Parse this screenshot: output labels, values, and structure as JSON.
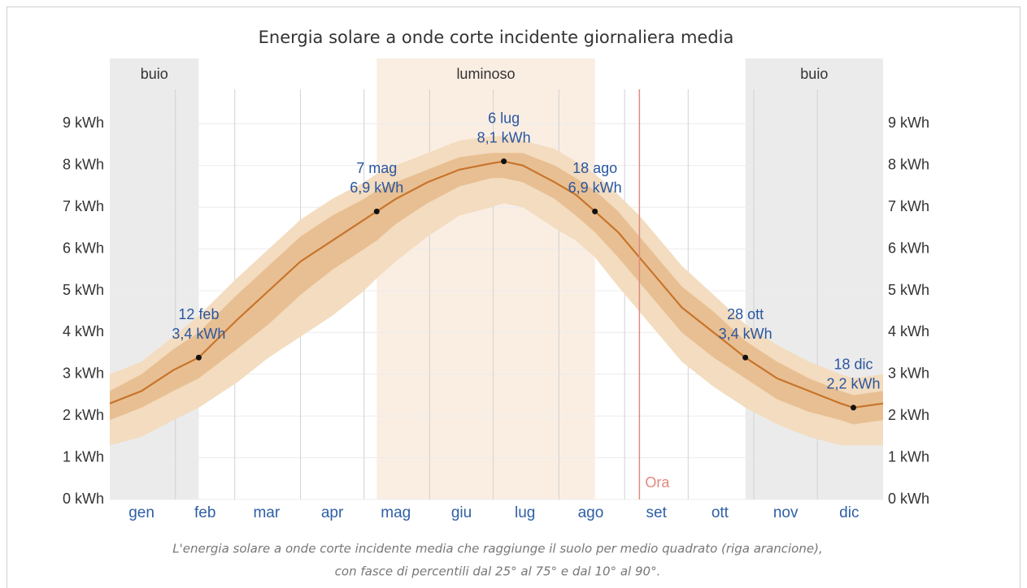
{
  "chart_data": {
    "type": "line",
    "title": "Energia solare a onde corte incidente giornaliera media",
    "caption": [
      "L'energia solare a onde corte incidente media che raggiunge il suolo per medio quadrato (riga arancione),",
      "con fasce di percentili dal 25° al 75° e dal 10° al 90°."
    ],
    "xlim": [
      0,
      365
    ],
    "xticks": [
      {
        "value": 15,
        "label": "gen"
      },
      {
        "value": 45,
        "label": "feb"
      },
      {
        "value": 74,
        "label": "mar"
      },
      {
        "value": 105,
        "label": "apr"
      },
      {
        "value": 135,
        "label": "mag"
      },
      {
        "value": 166,
        "label": "giu"
      },
      {
        "value": 196,
        "label": "lug"
      },
      {
        "value": 227,
        "label": "ago"
      },
      {
        "value": 258,
        "label": "set"
      },
      {
        "value": 288,
        "label": "ott"
      },
      {
        "value": 319,
        "label": "nov"
      },
      {
        "value": 349,
        "label": "dic"
      }
    ],
    "xgrid": [
      31,
      59,
      90,
      120,
      151,
      181,
      212,
      243,
      273,
      304,
      334
    ],
    "ylim": [
      0,
      9
    ],
    "yticks": [
      {
        "value": 0,
        "label": "0 kWh"
      },
      {
        "value": 1,
        "label": "1 kWh"
      },
      {
        "value": 2,
        "label": "2 kWh"
      },
      {
        "value": 3,
        "label": "3 kWh"
      },
      {
        "value": 4,
        "label": "4 kWh"
      },
      {
        "value": 5,
        "label": "5 kWh"
      },
      {
        "value": 6,
        "label": "6 kWh"
      },
      {
        "value": 7,
        "label": "7 kWh"
      },
      {
        "value": 8,
        "label": "8 kWh"
      },
      {
        "value": 9,
        "label": "9 kWh"
      }
    ],
    "grid": true,
    "regions": [
      {
        "from": 0,
        "to": 42,
        "label": "buio",
        "color": "#ebebeb"
      },
      {
        "from": 126,
        "to": 229,
        "label": "luminoso",
        "color": "#faeee3"
      },
      {
        "from": 300,
        "to": 365,
        "label": "buio",
        "color": "#ebebeb"
      }
    ],
    "x": [
      0,
      15,
      30,
      42,
      60,
      75,
      90,
      105,
      120,
      126,
      135,
      150,
      165,
      180,
      186,
      195,
      210,
      220,
      229,
      240,
      250,
      260,
      270,
      285,
      300,
      315,
      330,
      345,
      351,
      365
    ],
    "bands": [
      {
        "color": "#f3dcbf",
        "lower": [
          1.3,
          1.5,
          1.9,
          2.2,
          2.8,
          3.4,
          3.9,
          4.4,
          5.0,
          5.3,
          5.7,
          6.3,
          6.8,
          7.0,
          7.1,
          7.0,
          6.5,
          6.2,
          5.8,
          5.1,
          4.5,
          3.9,
          3.3,
          2.7,
          2.2,
          1.8,
          1.5,
          1.3,
          1.3,
          1.3
        ],
        "upper": [
          3.0,
          3.3,
          3.9,
          4.4,
          5.3,
          6.0,
          6.7,
          7.2,
          7.6,
          7.8,
          8.0,
          8.3,
          8.6,
          8.7,
          8.7,
          8.6,
          8.4,
          8.1,
          7.8,
          7.3,
          6.8,
          6.2,
          5.6,
          4.9,
          4.2,
          3.7,
          3.3,
          3.0,
          2.9,
          3.0
        ]
      },
      {
        "color": "#e8bf92",
        "lower": [
          1.9,
          2.2,
          2.6,
          2.9,
          3.6,
          4.2,
          4.9,
          5.5,
          6.0,
          6.2,
          6.6,
          7.1,
          7.5,
          7.7,
          7.7,
          7.6,
          7.2,
          6.8,
          6.4,
          5.8,
          5.2,
          4.6,
          4.0,
          3.4,
          2.9,
          2.4,
          2.1,
          1.9,
          1.8,
          1.9
        ],
        "upper": [
          2.6,
          3.0,
          3.6,
          4.0,
          4.9,
          5.6,
          6.3,
          6.8,
          7.2,
          7.4,
          7.6,
          7.9,
          8.2,
          8.3,
          8.3,
          8.3,
          8.0,
          7.7,
          7.4,
          6.9,
          6.3,
          5.7,
          5.1,
          4.5,
          3.8,
          3.3,
          2.9,
          2.6,
          2.5,
          2.6
        ]
      }
    ],
    "series": [
      {
        "color": "#c8742c",
        "values": [
          2.3,
          2.6,
          3.1,
          3.4,
          4.3,
          5.0,
          5.7,
          6.2,
          6.7,
          6.9,
          7.2,
          7.6,
          7.9,
          8.05,
          8.1,
          8.0,
          7.6,
          7.3,
          6.9,
          6.4,
          5.8,
          5.2,
          4.6,
          4.0,
          3.4,
          2.9,
          2.6,
          2.3,
          2.2,
          2.3
        ]
      }
    ],
    "annotations": [
      {
        "x": 42,
        "y": 3.4,
        "date": "12 feb",
        "label": "3,4 kWh"
      },
      {
        "x": 126,
        "y": 6.9,
        "date": "7 mag",
        "label": "6,9 kWh"
      },
      {
        "x": 186,
        "y": 8.1,
        "date": "6 lug",
        "label": "8,1 kWh"
      },
      {
        "x": 229,
        "y": 6.9,
        "date": "18 ago",
        "label": "6,9 kWh"
      },
      {
        "x": 300,
        "y": 3.4,
        "date": "28 ott",
        "label": "3,4 kWh"
      },
      {
        "x": 351,
        "y": 2.2,
        "date": "18 dic",
        "label": "2,2 kWh"
      }
    ],
    "now": {
      "x": 250,
      "label": "Ora",
      "color": "#e08a80"
    }
  }
}
